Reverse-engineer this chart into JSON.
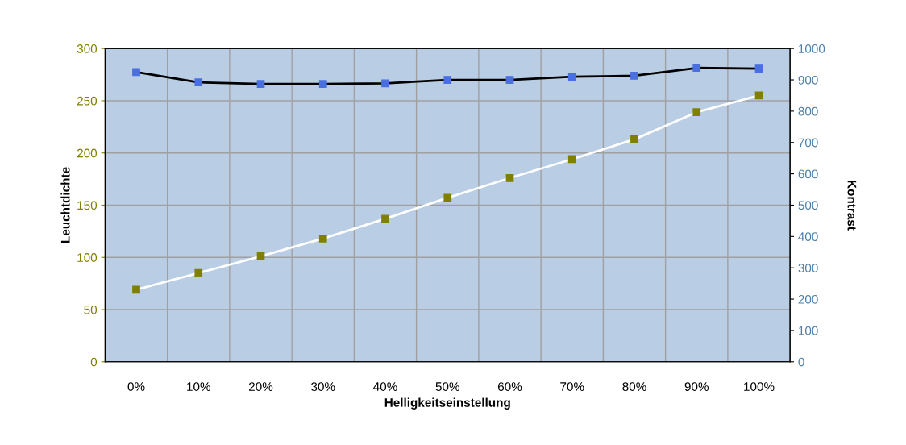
{
  "chart_data": {
    "type": "line",
    "xlabel": "Helligkeitseinstellung",
    "ylabel": "Leuchtdichte",
    "y2label": "Kontrast",
    "categories": [
      "0%",
      "10%",
      "20%",
      "30%",
      "40%",
      "50%",
      "60%",
      "70%",
      "80%",
      "90%",
      "100%"
    ],
    "series": [
      {
        "color": "#ffffff",
        "colors": [
          "#808000",
          "#808000",
          "#808000",
          "#808000",
          "#808000",
          "#808000",
          "#808000",
          "#808000",
          "#808000",
          "#808000",
          "#808000"
        ],
        "values": [
          69,
          85,
          101,
          118,
          137,
          157,
          176,
          194,
          213,
          239,
          255
        ]
      },
      {
        "color": "#000000",
        "colors": [
          "#4a6fe0",
          "#4a6fe0",
          "#4a6fe0",
          "#4a6fe0",
          "#4a6fe0",
          "#4a6fe0",
          "#4a6fe0",
          "#4a6fe0",
          "#4a6fe0",
          "#4a6fe0",
          "#4a6fe0"
        ],
        "axis": "y2",
        "values": [
          925,
          892,
          887,
          887,
          889,
          900,
          900,
          910,
          913,
          938,
          936
        ]
      }
    ],
    "ylim": [
      0,
      300
    ],
    "yticks": [
      0,
      50,
      100,
      150,
      200,
      250,
      300
    ],
    "y2lim": [
      0,
      1000
    ],
    "y2ticks": [
      0,
      100,
      200,
      300,
      400,
      500,
      600,
      700,
      800,
      900,
      1000
    ],
    "grid": true,
    "marker": "square",
    "legend": false
  }
}
